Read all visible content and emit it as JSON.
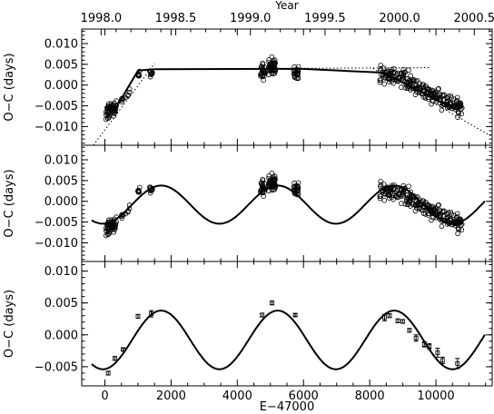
{
  "chart_data": {
    "type": "scatter",
    "x_axis": {
      "label": "E−47000",
      "range": [
        -700,
        11700
      ],
      "ticks": [
        0,
        2000,
        4000,
        6000,
        8000,
        10000
      ],
      "tick_labels": [
        "0",
        "2000",
        "4000",
        "6000",
        "8000",
        "10000"
      ]
    },
    "top_axis": {
      "label": "Year",
      "range": [
        1997.87,
        2000.62
      ],
      "ticks": [
        1998.0,
        1998.5,
        1999.0,
        1999.5,
        2000.0,
        2000.5
      ],
      "tick_labels": [
        "1998.0",
        "1998.5",
        "1999.0",
        "1999.5",
        "2000.0",
        "2000.5"
      ]
    },
    "panels": [
      {
        "ylabel": "O−C (days)",
        "ylim": [
          -0.0145,
          0.0135
        ],
        "ticks": [
          0.01,
          0.005,
          0.0,
          -0.005,
          -0.01
        ],
        "tick_labels": [
          "0.010",
          "0.005",
          "0.000",
          "−0.005",
          "−0.010"
        ],
        "piecewise_fit": [
          [
            250,
            -0.0066
          ],
          [
            1000,
            0.0035
          ],
          [
            1500,
            0.0038
          ],
          [
            5000,
            0.0039
          ],
          [
            6000,
            0.0039
          ],
          [
            8400,
            0.003
          ],
          [
            10500,
            -0.0055
          ]
        ],
        "dotted_lines": [
          {
            "x": [
              -350,
              1500
            ],
            "y": [
              -0.0145,
              0.0052
            ]
          },
          {
            "x": [
              1300,
              9800
            ],
            "y": [
              0.0038,
              0.0042
            ]
          },
          {
            "x": [
              8100,
              11650
            ],
            "y": [
              0.004,
              -0.0122
            ]
          }
        ]
      },
      {
        "ylabel": "O−C (days)",
        "ylim": [
          -0.0145,
          0.0135
        ],
        "ticks": [
          0.01,
          0.005,
          0.0,
          -0.005,
          -0.01
        ],
        "tick_labels": [
          "0.010",
          "0.005",
          "0.000",
          "−0.005",
          "−0.010"
        ]
      },
      {
        "ylabel": "O−C (days)",
        "ylim": [
          -0.008,
          0.0115
        ],
        "ticks": [
          0.01,
          0.005,
          0.0,
          -0.005
        ],
        "tick_labels": [
          "0.010",
          "0.005",
          "0.000",
          "−0.005"
        ],
        "binned_points": [
          {
            "x": 100,
            "y": -0.006,
            "err": 0.0003
          },
          {
            "x": 300,
            "y": -0.0037,
            "err": 0.0003
          },
          {
            "x": 550,
            "y": -0.0023,
            "err": 0.0002
          },
          {
            "x": 1000,
            "y": 0.0029,
            "err": 0.0003
          },
          {
            "x": 1400,
            "y": 0.0033,
            "err": 0.0005
          },
          {
            "x": 4750,
            "y": 0.0031,
            "err": 0.0003
          },
          {
            "x": 5050,
            "y": 0.005,
            "err": 0.0003
          },
          {
            "x": 5750,
            "y": 0.0031,
            "err": 0.0002
          },
          {
            "x": 8450,
            "y": 0.0027,
            "err": 0.0005
          },
          {
            "x": 8600,
            "y": 0.003,
            "err": 0.0003
          },
          {
            "x": 8850,
            "y": 0.0022,
            "err": 0.0003
          },
          {
            "x": 9000,
            "y": 0.0021,
            "err": 0.0003
          },
          {
            "x": 9200,
            "y": 0.0007,
            "err": 0.0003
          },
          {
            "x": 9400,
            "y": -0.0005,
            "err": 0.0005
          },
          {
            "x": 9650,
            "y": -0.0015,
            "err": 0.0004
          },
          {
            "x": 9800,
            "y": -0.0018,
            "err": 0.0004
          },
          {
            "x": 10050,
            "y": -0.0028,
            "err": 0.0007
          },
          {
            "x": 10200,
            "y": -0.004,
            "err": 0.0005
          },
          {
            "x": 10650,
            "y": -0.0045,
            "err": 0.0008
          }
        ]
      }
    ],
    "sine_model": {
      "offset": -0.0008,
      "amplitude": 0.0046,
      "period": 3520,
      "x_at_maximum": 1700,
      "x_range": [
        -400,
        11500
      ]
    },
    "observation_groups": [
      {
        "x_range": [
          0,
          350
        ],
        "trend": [
          [
            0,
            -0.0072
          ],
          [
            350,
            -0.005
          ]
        ],
        "scatter": 0.0016,
        "count": 55
      },
      {
        "x_range": [
          500,
          750
        ],
        "trend": [
          [
            500,
            -0.004
          ],
          [
            750,
            -0.002
          ]
        ],
        "scatter": 0.0009,
        "count": 10
      },
      {
        "x_range": [
          950,
          1050
        ],
        "trend": [
          [
            950,
            0.0018
          ],
          [
            1050,
            0.0032
          ]
        ],
        "scatter": 0.001,
        "count": 8
      },
      {
        "x_range": [
          1350,
          1450
        ],
        "trend": [
          [
            1350,
            0.003
          ],
          [
            1450,
            0.0034
          ]
        ],
        "scatter": 0.0009,
        "count": 10
      },
      {
        "x_range": [
          4700,
          4850
        ],
        "trend": [
          [
            4700,
            0.003
          ],
          [
            4850,
            0.0034
          ]
        ],
        "scatter": 0.0018,
        "count": 25
      },
      {
        "x_range": [
          4950,
          5150
        ],
        "trend": [
          [
            4950,
            0.0046
          ],
          [
            5150,
            0.0044
          ]
        ],
        "scatter": 0.0018,
        "count": 50
      },
      {
        "x_range": [
          5700,
          5850
        ],
        "trend": [
          [
            5700,
            0.003
          ],
          [
            5850,
            0.0031
          ]
        ],
        "scatter": 0.0012,
        "count": 25
      },
      {
        "x_range": [
          8300,
          10800
        ],
        "trend": [
          [
            8300,
            0.003
          ],
          [
            9000,
            0.0015
          ],
          [
            9800,
            -0.002
          ],
          [
            10800,
            -0.0055
          ]
        ],
        "scatter": 0.002,
        "count": 230
      }
    ]
  }
}
